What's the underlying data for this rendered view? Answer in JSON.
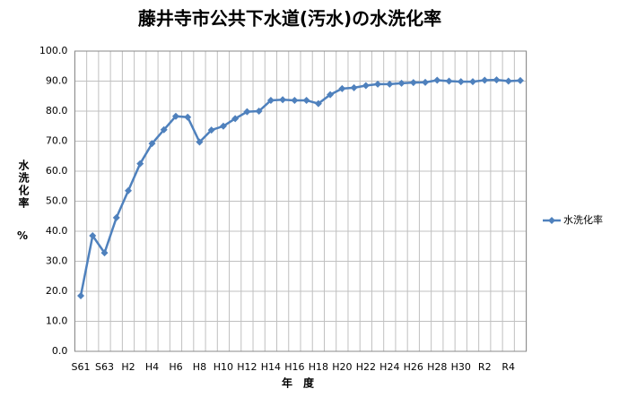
{
  "chart_data": {
    "type": "line",
    "title": "藤井寺市公共下水道(汚水)の水洗化率",
    "y_label": "水洗化率",
    "y_unit": "%",
    "x_label": "年　度",
    "categories": [
      "S61",
      null,
      "S63",
      null,
      "H2",
      null,
      "H4",
      null,
      "H6",
      null,
      "H8",
      null,
      "H10",
      null,
      "H12",
      null,
      "H14",
      null,
      "H16",
      null,
      "H18",
      null,
      "H20",
      null,
      "H22",
      null,
      "H24",
      null,
      "H26",
      null,
      "H28",
      null,
      "H30",
      null,
      "R2",
      null,
      "R4",
      null
    ],
    "series": [
      {
        "name": "水洗化率",
        "color": "#4f81bd",
        "values": [
          18.5,
          38.5,
          32.8,
          44.5,
          53.5,
          62.5,
          69.2,
          73.8,
          78.3,
          78.0,
          69.7,
          73.7,
          75.0,
          77.5,
          79.8,
          80.0,
          83.6,
          83.8,
          83.6,
          83.6,
          82.5,
          85.5,
          87.5,
          87.8,
          88.5,
          89.0,
          89.0,
          89.3,
          89.5,
          89.6,
          90.3,
          90.0,
          89.8,
          89.8,
          90.3,
          90.4,
          90.0,
          90.2
        ]
      }
    ],
    "ylim": [
      0,
      100
    ],
    "yticks": [
      {
        "value": 0,
        "label": "0.0"
      },
      {
        "value": 10,
        "label": "10.0"
      },
      {
        "value": 20,
        "label": "20.0"
      },
      {
        "value": 30,
        "label": "30.0"
      },
      {
        "value": 40,
        "label": "40.0"
      },
      {
        "value": 50,
        "label": "50.0"
      },
      {
        "value": 60,
        "label": "60.0"
      },
      {
        "value": 70,
        "label": "70.0"
      },
      {
        "value": 80,
        "label": "80.0"
      },
      {
        "value": 90,
        "label": "90.0"
      },
      {
        "value": 100,
        "label": "100.0"
      }
    ],
    "grid": true,
    "legend": "right"
  }
}
